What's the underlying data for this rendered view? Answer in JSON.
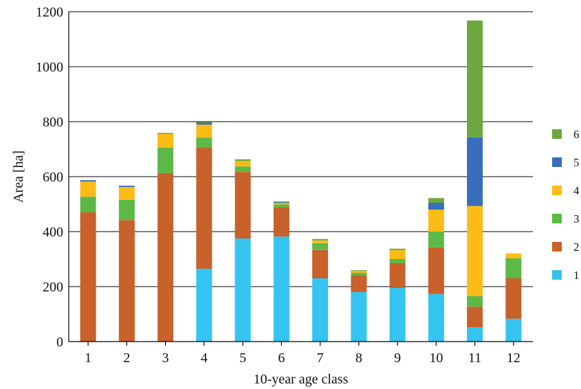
{
  "chart_data": {
    "type": "bar",
    "stacked": true,
    "xlabel": "10-year age class",
    "ylabel": "Area [ha]",
    "ylim": [
      0,
      1200
    ],
    "yticks": [
      0,
      200,
      400,
      600,
      800,
      1000,
      1200
    ],
    "grid": true,
    "legend_position": "right",
    "categories": [
      "1",
      "2",
      "3",
      "4",
      "5",
      "6",
      "7",
      "8",
      "9",
      "10",
      "11",
      "12"
    ],
    "series": [
      {
        "name": "1",
        "color": "#35C4F0",
        "values": [
          0,
          0,
          0,
          265,
          375,
          382,
          230,
          180,
          195,
          173,
          52,
          83
        ]
      },
      {
        "name": "2",
        "color": "#C8612A",
        "values": [
          470,
          442,
          613,
          442,
          242,
          107,
          103,
          60,
          90,
          170,
          75,
          147
        ]
      },
      {
        "name": "3",
        "color": "#5CB946",
        "values": [
          57,
          73,
          92,
          35,
          20,
          10,
          25,
          10,
          15,
          57,
          38,
          73
        ]
      },
      {
        "name": "4",
        "color": "#FDBB16",
        "values": [
          55,
          47,
          50,
          47,
          20,
          5,
          10,
          7,
          33,
          80,
          328,
          18
        ]
      },
      {
        "name": "5",
        "color": "#3A6EBD",
        "values": [
          5,
          5,
          0,
          7,
          0,
          3,
          0,
          0,
          0,
          25,
          250,
          0
        ]
      },
      {
        "name": "6",
        "color": "#6CA83F",
        "values": [
          0,
          0,
          4,
          3,
          6,
          3,
          5,
          3,
          5,
          17,
          425,
          0
        ]
      }
    ]
  }
}
